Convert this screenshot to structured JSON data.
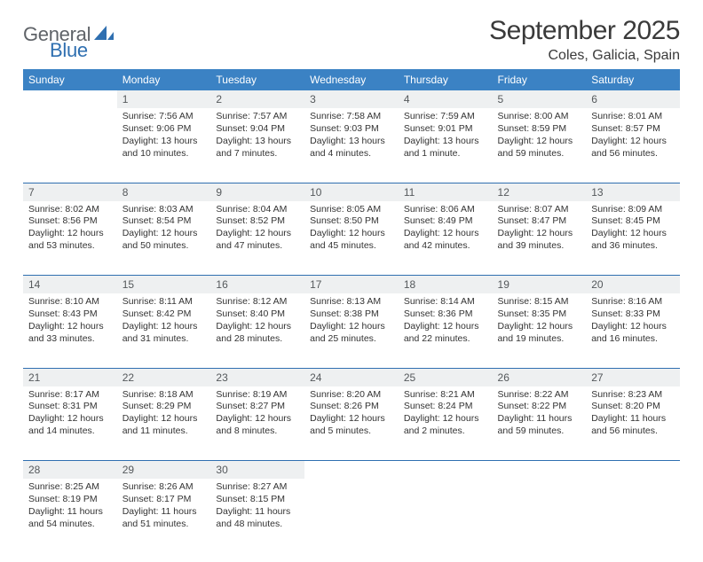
{
  "logo": {
    "text1": "General",
    "text2": "Blue"
  },
  "title": "September 2025",
  "location": "Coles, Galicia, Spain",
  "colors": {
    "header_bg": "#3b82c4",
    "header_text": "#ffffff",
    "daynum_bg": "#eef0f1",
    "daynum_text": "#55595c",
    "rule": "#2f6fb0",
    "body_text": "#333333",
    "title_text": "#3a3a3a"
  },
  "dayHeaders": [
    "Sunday",
    "Monday",
    "Tuesday",
    "Wednesday",
    "Thursday",
    "Friday",
    "Saturday"
  ],
  "weeks": [
    [
      null,
      {
        "n": "1",
        "sr": "7:56 AM",
        "ss": "9:06 PM",
        "dl": "13 hours and 10 minutes."
      },
      {
        "n": "2",
        "sr": "7:57 AM",
        "ss": "9:04 PM",
        "dl": "13 hours and 7 minutes."
      },
      {
        "n": "3",
        "sr": "7:58 AM",
        "ss": "9:03 PM",
        "dl": "13 hours and 4 minutes."
      },
      {
        "n": "4",
        "sr": "7:59 AM",
        "ss": "9:01 PM",
        "dl": "13 hours and 1 minute."
      },
      {
        "n": "5",
        "sr": "8:00 AM",
        "ss": "8:59 PM",
        "dl": "12 hours and 59 minutes."
      },
      {
        "n": "6",
        "sr": "8:01 AM",
        "ss": "8:57 PM",
        "dl": "12 hours and 56 minutes."
      }
    ],
    [
      {
        "n": "7",
        "sr": "8:02 AM",
        "ss": "8:56 PM",
        "dl": "12 hours and 53 minutes."
      },
      {
        "n": "8",
        "sr": "8:03 AM",
        "ss": "8:54 PM",
        "dl": "12 hours and 50 minutes."
      },
      {
        "n": "9",
        "sr": "8:04 AM",
        "ss": "8:52 PM",
        "dl": "12 hours and 47 minutes."
      },
      {
        "n": "10",
        "sr": "8:05 AM",
        "ss": "8:50 PM",
        "dl": "12 hours and 45 minutes."
      },
      {
        "n": "11",
        "sr": "8:06 AM",
        "ss": "8:49 PM",
        "dl": "12 hours and 42 minutes."
      },
      {
        "n": "12",
        "sr": "8:07 AM",
        "ss": "8:47 PM",
        "dl": "12 hours and 39 minutes."
      },
      {
        "n": "13",
        "sr": "8:09 AM",
        "ss": "8:45 PM",
        "dl": "12 hours and 36 minutes."
      }
    ],
    [
      {
        "n": "14",
        "sr": "8:10 AM",
        "ss": "8:43 PM",
        "dl": "12 hours and 33 minutes."
      },
      {
        "n": "15",
        "sr": "8:11 AM",
        "ss": "8:42 PM",
        "dl": "12 hours and 31 minutes."
      },
      {
        "n": "16",
        "sr": "8:12 AM",
        "ss": "8:40 PM",
        "dl": "12 hours and 28 minutes."
      },
      {
        "n": "17",
        "sr": "8:13 AM",
        "ss": "8:38 PM",
        "dl": "12 hours and 25 minutes."
      },
      {
        "n": "18",
        "sr": "8:14 AM",
        "ss": "8:36 PM",
        "dl": "12 hours and 22 minutes."
      },
      {
        "n": "19",
        "sr": "8:15 AM",
        "ss": "8:35 PM",
        "dl": "12 hours and 19 minutes."
      },
      {
        "n": "20",
        "sr": "8:16 AM",
        "ss": "8:33 PM",
        "dl": "12 hours and 16 minutes."
      }
    ],
    [
      {
        "n": "21",
        "sr": "8:17 AM",
        "ss": "8:31 PM",
        "dl": "12 hours and 14 minutes."
      },
      {
        "n": "22",
        "sr": "8:18 AM",
        "ss": "8:29 PM",
        "dl": "12 hours and 11 minutes."
      },
      {
        "n": "23",
        "sr": "8:19 AM",
        "ss": "8:27 PM",
        "dl": "12 hours and 8 minutes."
      },
      {
        "n": "24",
        "sr": "8:20 AM",
        "ss": "8:26 PM",
        "dl": "12 hours and 5 minutes."
      },
      {
        "n": "25",
        "sr": "8:21 AM",
        "ss": "8:24 PM",
        "dl": "12 hours and 2 minutes."
      },
      {
        "n": "26",
        "sr": "8:22 AM",
        "ss": "8:22 PM",
        "dl": "11 hours and 59 minutes."
      },
      {
        "n": "27",
        "sr": "8:23 AM",
        "ss": "8:20 PM",
        "dl": "11 hours and 56 minutes."
      }
    ],
    [
      {
        "n": "28",
        "sr": "8:25 AM",
        "ss": "8:19 PM",
        "dl": "11 hours and 54 minutes."
      },
      {
        "n": "29",
        "sr": "8:26 AM",
        "ss": "8:17 PM",
        "dl": "11 hours and 51 minutes."
      },
      {
        "n": "30",
        "sr": "8:27 AM",
        "ss": "8:15 PM",
        "dl": "11 hours and 48 minutes."
      },
      null,
      null,
      null,
      null
    ]
  ],
  "labels": {
    "sunrise": "Sunrise: ",
    "sunset": "Sunset: ",
    "daylight": "Daylight: "
  }
}
